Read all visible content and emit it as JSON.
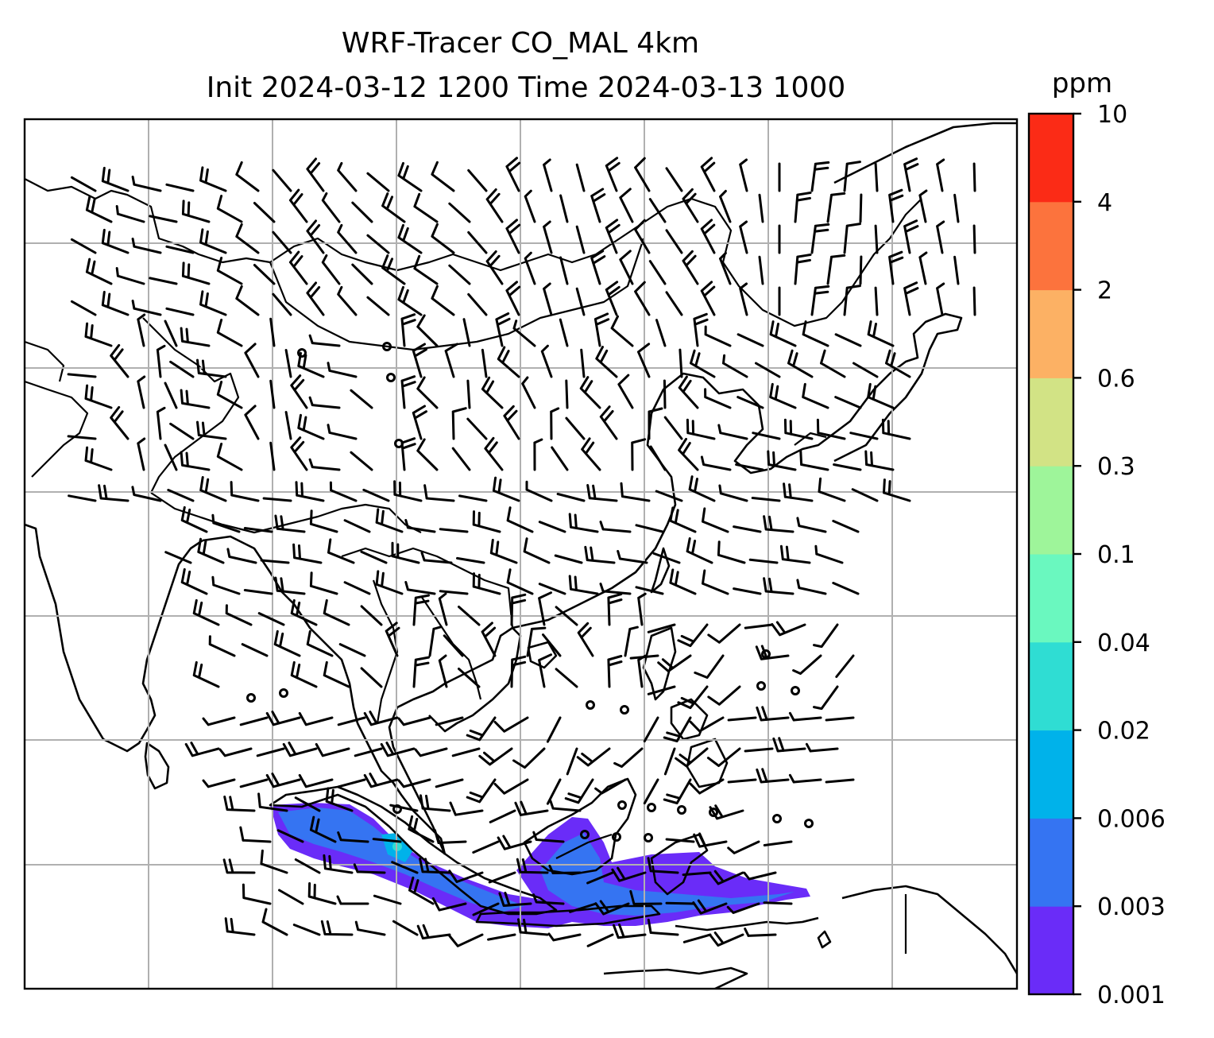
{
  "figure": {
    "title_line1": "WRF-Tracer CO_MAL 4km",
    "title_line2": "Init 2024-03-12 1200 Time 2024-03-13 1000"
  },
  "colorbar": {
    "unit": "ppm",
    "tick_labels": [
      "0.001",
      "0.003",
      "0.006",
      "0.02",
      "0.04",
      "0.1",
      "0.3",
      "0.6",
      "2",
      "4",
      "10"
    ],
    "levels": [
      {
        "from": "0.001",
        "to": "0.003",
        "color": "#6a2cf8"
      },
      {
        "from": "0.003",
        "to": "0.006",
        "color": "#3574f2"
      },
      {
        "from": "0.006",
        "to": "0.02",
        "color": "#00b2ea"
      },
      {
        "from": "0.02",
        "to": "0.04",
        "color": "#2fddd3"
      },
      {
        "from": "0.04",
        "to": "0.1",
        "color": "#6af8bf"
      },
      {
        "from": "0.1",
        "to": "0.3",
        "color": "#9ef59a"
      },
      {
        "from": "0.3",
        "to": "0.6",
        "color": "#d2e385"
      },
      {
        "from": "0.6",
        "to": "2",
        "color": "#fcb164"
      },
      {
        "from": "2",
        "to": "4",
        "color": "#fc733d"
      },
      {
        "from": "4",
        "to": "10",
        "color": "#fb2b16"
      }
    ]
  },
  "map": {
    "field": "CO_MAL tracer concentration",
    "overlay": "wind barbs",
    "gridlines": true
  }
}
